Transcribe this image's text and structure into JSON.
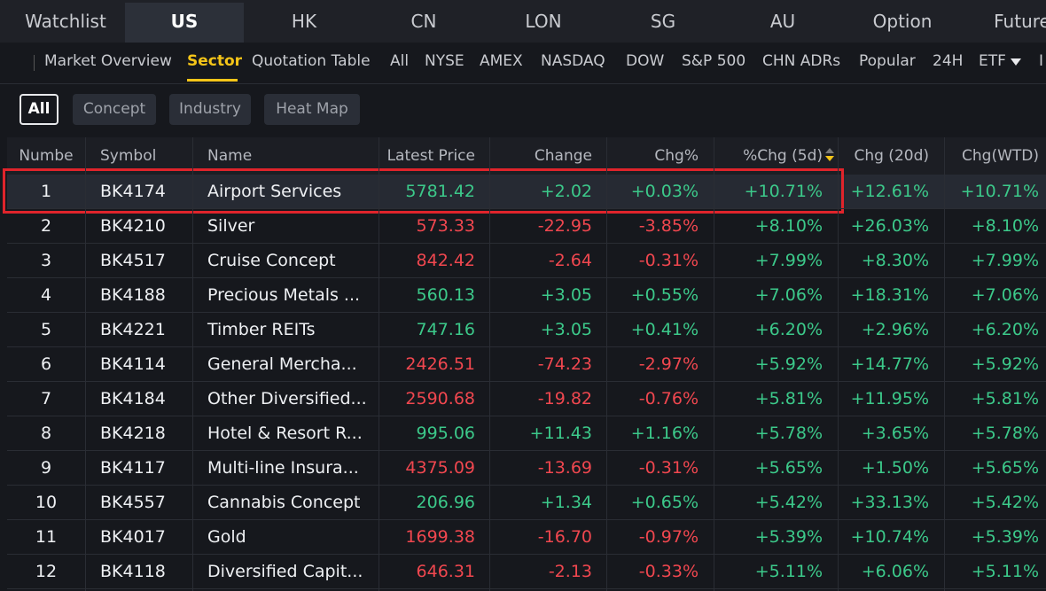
{
  "top_tabs": [
    "Watchlist",
    "US",
    "HK",
    "CN",
    "LON",
    "SG",
    "AU",
    "Option",
    "Future"
  ],
  "sub_tabs": [
    "Market Overview",
    "Sector",
    "Quotation Table",
    "All",
    "NYSE",
    "AMEX",
    "NASDAQ",
    "DOW",
    "S&P 500",
    "CHN ADRs",
    "Popular",
    "24H",
    "ETF",
    "I"
  ],
  "filters": [
    "All",
    "Concept",
    "Industry",
    "Heat Map"
  ],
  "table": {
    "headers": [
      "Numbe",
      "Symbol",
      "Name",
      "Latest Price",
      "Change",
      "Chg%",
      "%Chg (5d)",
      "Chg (20d)",
      "Chg(WTD)"
    ],
    "rows": [
      [
        "1",
        "BK4174",
        "Airport Services",
        "5781.42",
        "+2.02",
        "+0.03%",
        "+10.71%",
        "+12.61%",
        "+10.71%"
      ],
      [
        "2",
        "BK4210",
        "Silver",
        "573.33",
        "-22.95",
        "-3.85%",
        "+8.10%",
        "+26.03%",
        "+8.10%"
      ],
      [
        "3",
        "BK4517",
        "Cruise Concept",
        "842.42",
        "-2.64",
        "-0.31%",
        "+7.99%",
        "+8.30%",
        "+7.99%"
      ],
      [
        "4",
        "BK4188",
        "Precious Metals ...",
        "560.13",
        "+3.05",
        "+0.55%",
        "+7.06%",
        "+18.31%",
        "+7.06%"
      ],
      [
        "5",
        "BK4221",
        "Timber REITs",
        "747.16",
        "+3.05",
        "+0.41%",
        "+6.20%",
        "+2.96%",
        "+6.20%"
      ],
      [
        "6",
        "BK4114",
        "General Mercha...",
        "2426.51",
        "-74.23",
        "-2.97%",
        "+5.92%",
        "+14.77%",
        "+5.92%"
      ],
      [
        "7",
        "BK4184",
        "Other Diversified...",
        "2590.68",
        "-19.82",
        "-0.76%",
        "+5.81%",
        "+11.95%",
        "+5.81%"
      ],
      [
        "8",
        "BK4218",
        "Hotel & Resort R...",
        "995.06",
        "+11.43",
        "+1.16%",
        "+5.78%",
        "+3.65%",
        "+5.78%"
      ],
      [
        "9",
        "BK4117",
        "Multi-line Insura...",
        "4375.09",
        "-13.69",
        "-0.31%",
        "+5.65%",
        "+1.50%",
        "+5.65%"
      ],
      [
        "10",
        "BK4557",
        "Cannabis Concept",
        "206.96",
        "+1.34",
        "+0.65%",
        "+5.42%",
        "+33.13%",
        "+5.42%"
      ],
      [
        "11",
        "BK4017",
        "Gold",
        "1699.38",
        "-16.70",
        "-0.97%",
        "+5.39%",
        "+10.74%",
        "+5.39%"
      ],
      [
        "12",
        "BK4118",
        "Diversified Capit...",
        "646.31",
        "-2.13",
        "-0.33%",
        "+5.11%",
        "+6.06%",
        "+5.11%"
      ]
    ]
  }
}
